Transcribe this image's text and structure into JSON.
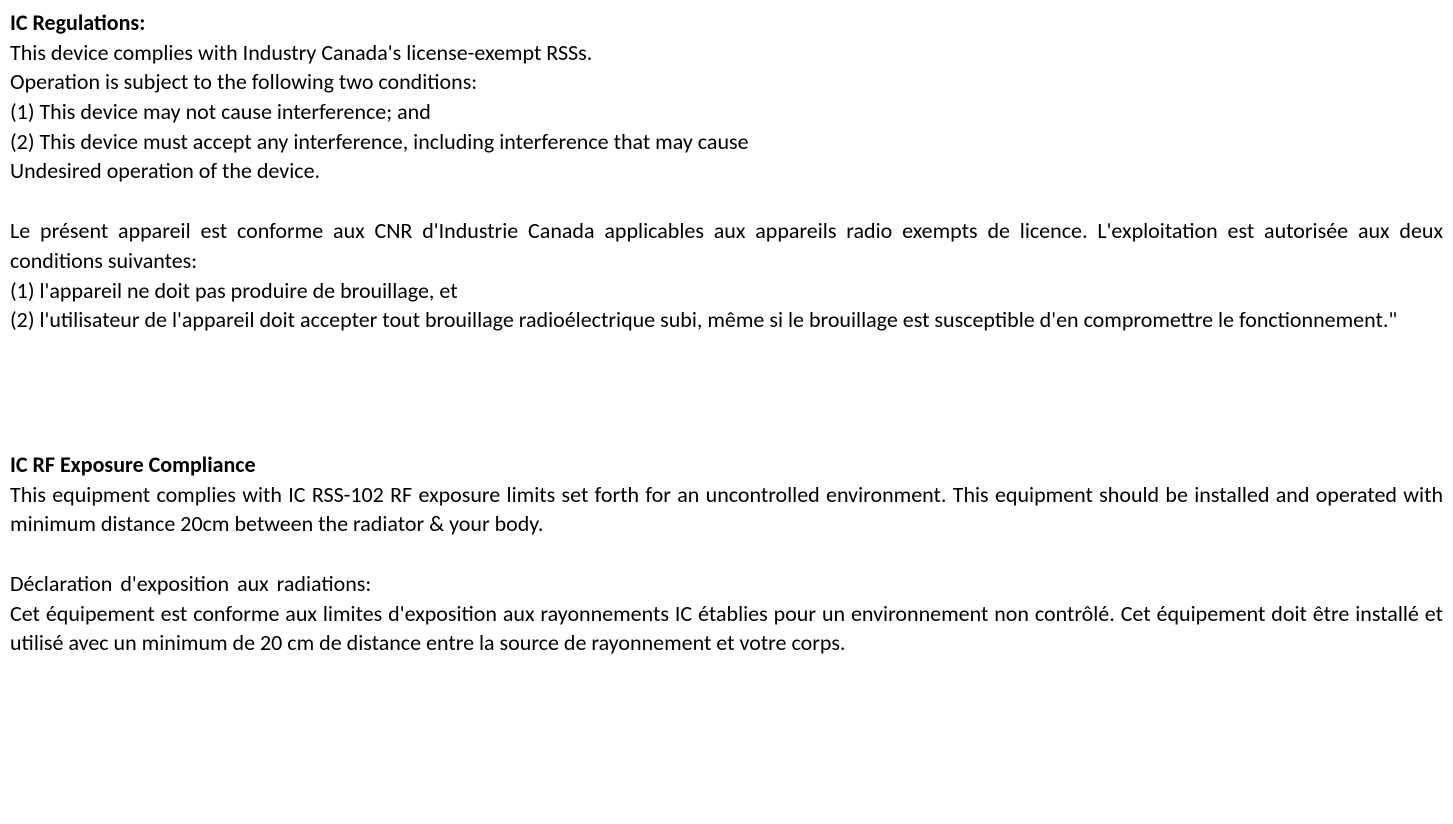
{
  "document": {
    "font_family": "Calibri, Arial, sans-serif",
    "font_size_pt": 16,
    "text_color": "#000000",
    "background_color": "#ffffff"
  },
  "section1": {
    "heading": "IC Regulations:",
    "en_line1": "This device complies with Industry Canada's license-exempt RSSs.",
    "en_line2": "Operation is subject to the following two conditions:",
    "en_line3": "(1) This device may not cause interference; and",
    "en_line4": "(2) This device must accept any interference, including interference that may cause",
    "en_line5": "Undesired operation of the device.",
    "fr_line1": "Le présent appareil est conforme aux CNR d'Industrie Canada applicables aux appareils radio exempts de licence. L'exploitation est autorisée aux deux conditions suivantes:",
    "fr_line2": "(1) l'appareil ne doit pas produire de brouillage, et",
    "fr_line3": "(2) l'utilisateur de l'appareil doit accepter tout brouillage radioélectrique subi, même si le brouillage est susceptible d'en compromettre le fonctionnement.\""
  },
  "section2": {
    "heading": "IC RF Exposure Compliance",
    "en_para": "This equipment complies with IC RSS-102 RF exposure limits set forth for an uncontrolled environment. This equipment should be installed and operated with minimum distance 20cm between the radiator & your body.",
    "fr_heading": "Déclaration  d'exposition  aux  radiations:",
    "fr_para": "Cet équipement est conforme aux limites d'exposition aux rayonnements IC établies pour un environnement non contrôlé. Cet équipement doit être installé et utilisé avec un minimum de 20 cm de distance entre la source de rayonnement et votre corps."
  }
}
